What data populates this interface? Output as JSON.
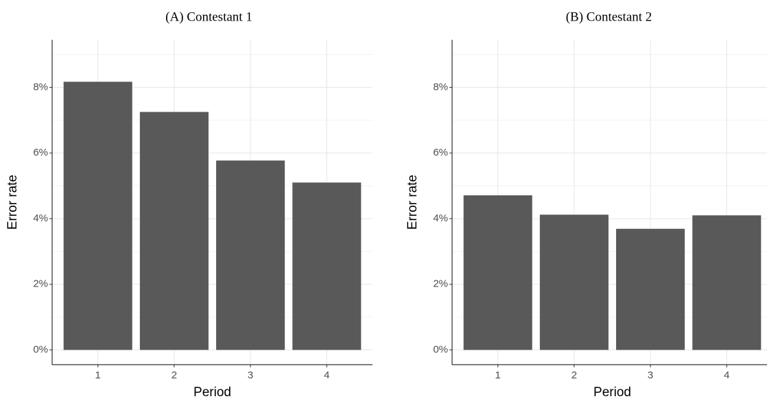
{
  "chart_data": [
    {
      "type": "bar",
      "title": "(A) Contestant 1",
      "x_label": "Period",
      "y_label": "Error rate",
      "categories": [
        "1",
        "2",
        "3",
        "4"
      ],
      "values": [
        8.17,
        7.25,
        5.77,
        5.1
      ],
      "color": "#595959",
      "ylim": [
        -0.45,
        9.45
      ],
      "yticks": [
        {
          "value": 0,
          "label": "0%"
        },
        {
          "value": 2,
          "label": "2%"
        },
        {
          "value": 4,
          "label": "4%"
        },
        {
          "value": 6,
          "label": "6%"
        },
        {
          "value": 8,
          "label": "8%"
        }
      ],
      "minor_yticks": [
        1,
        3,
        5,
        7,
        9
      ],
      "grid": true
    },
    {
      "type": "bar",
      "title": "(B) Contestant 2",
      "x_label": "Period",
      "y_label": "Error rate",
      "categories": [
        "1",
        "2",
        "3",
        "4"
      ],
      "values": [
        4.71,
        4.12,
        3.69,
        4.1
      ],
      "color": "#595959",
      "ylim": [
        -0.45,
        9.45
      ],
      "yticks": [
        {
          "value": 0,
          "label": "0%"
        },
        {
          "value": 2,
          "label": "2%"
        },
        {
          "value": 4,
          "label": "4%"
        },
        {
          "value": 6,
          "label": "6%"
        },
        {
          "value": 8,
          "label": "8%"
        }
      ],
      "minor_yticks": [
        1,
        3,
        5,
        7,
        9
      ],
      "grid": true
    }
  ]
}
